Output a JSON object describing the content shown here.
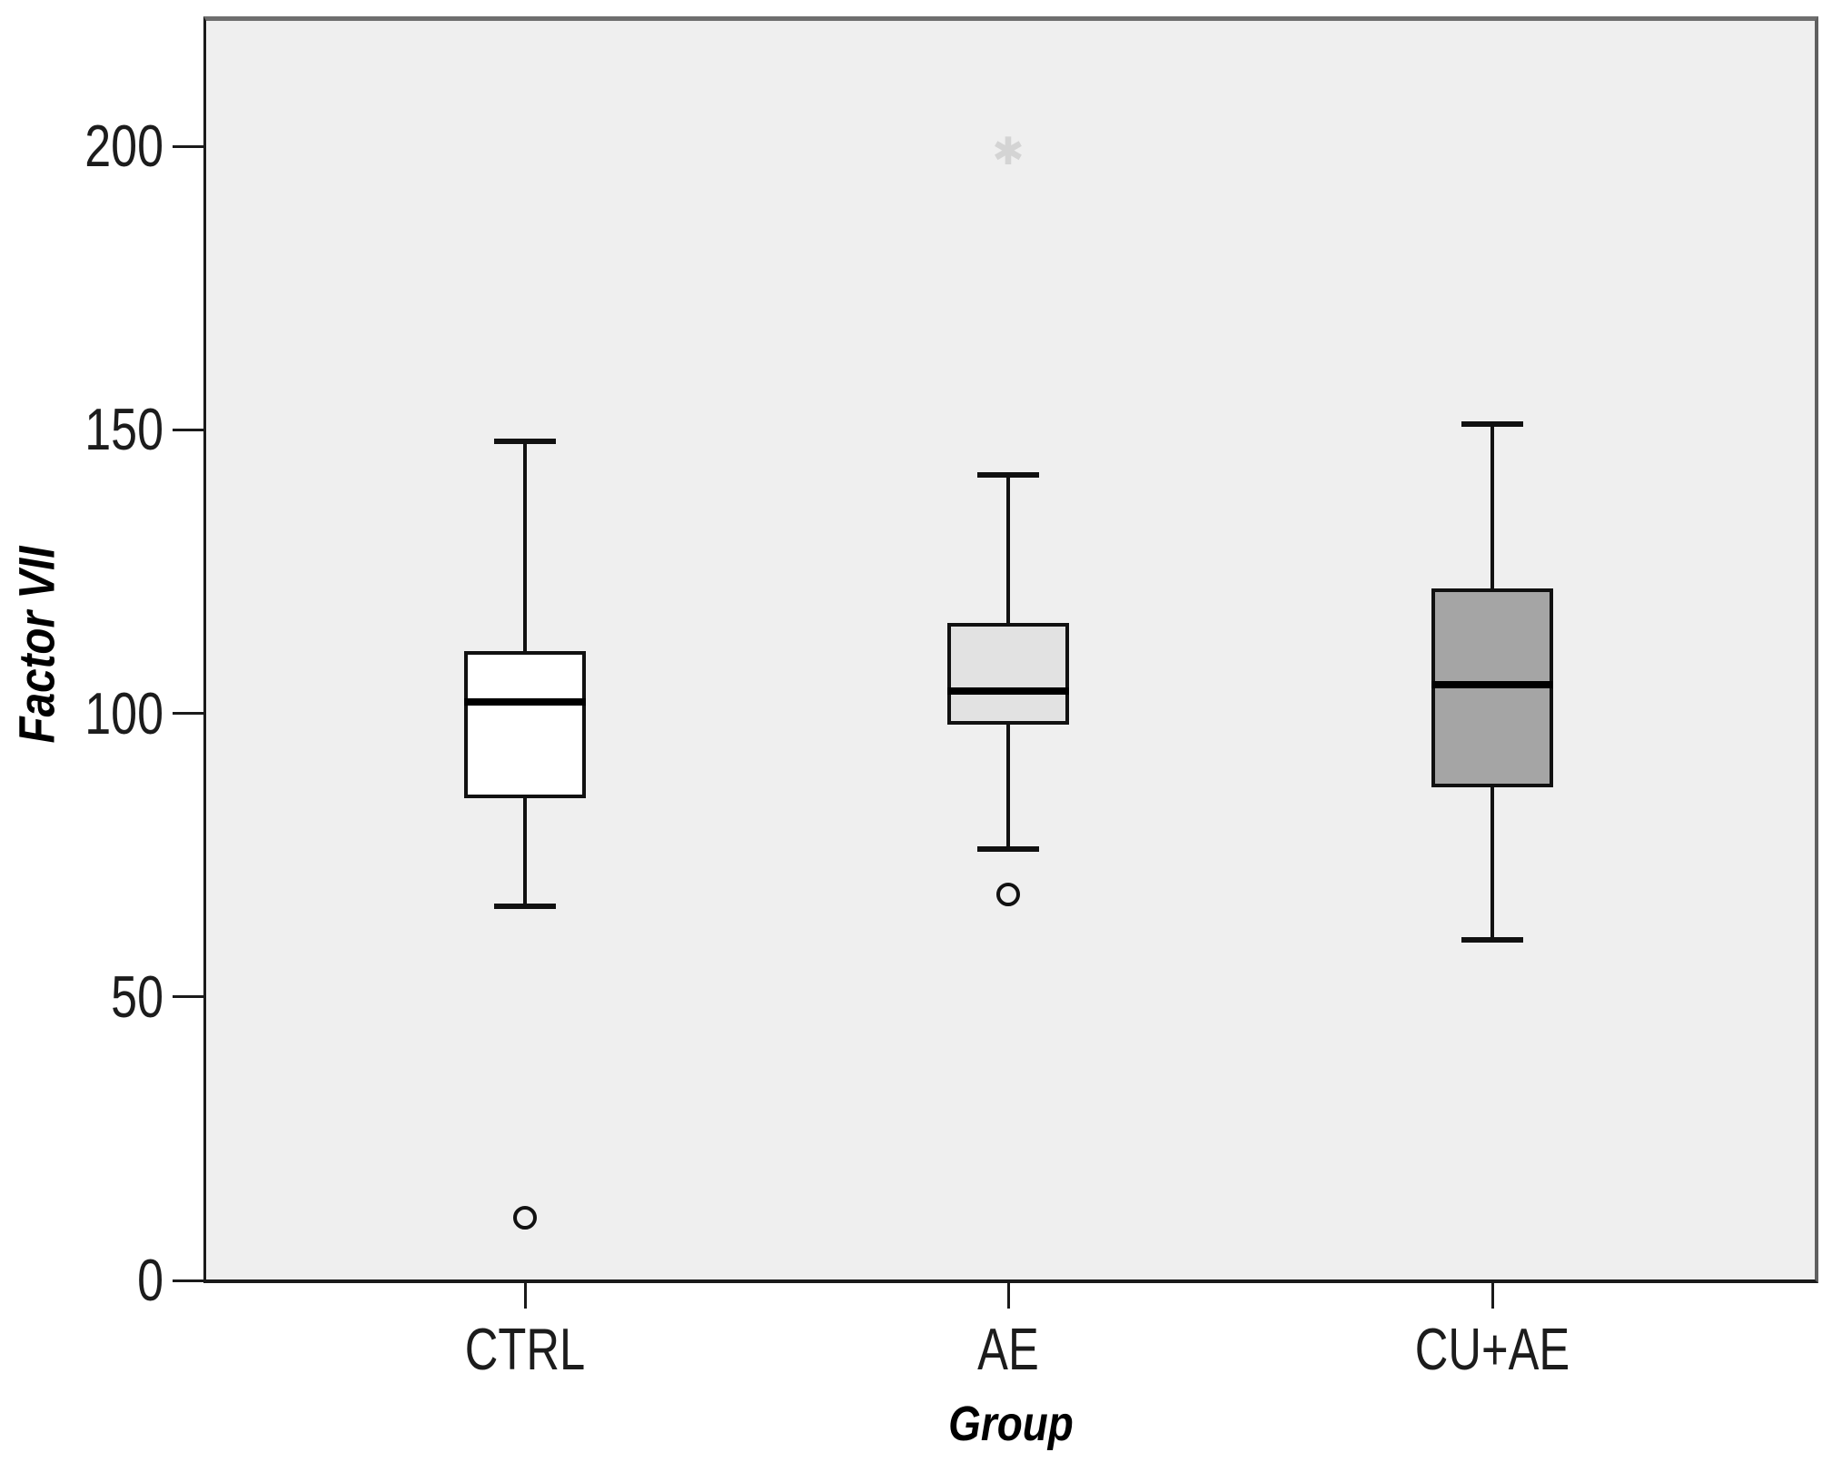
{
  "chart_data": {
    "type": "boxplot",
    "title": "",
    "xlabel": "Group",
    "ylabel": "Factor VII",
    "categories": [
      "CTRL",
      "AE",
      "CU+AE"
    ],
    "ylim": [
      0,
      223
    ],
    "yticks": [
      0,
      50,
      100,
      150,
      200
    ],
    "grid": false,
    "legend": "none",
    "series": [
      {
        "name": "CTRL",
        "whisker_low": 66,
        "q1": 85,
        "median": 102,
        "q3": 111,
        "whisker_high": 148,
        "outliers": [
          11
        ],
        "extremes": [],
        "box_fill": "#ffffff"
      },
      {
        "name": "AE",
        "whisker_low": 76,
        "q1": 98,
        "median": 104,
        "q3": 116,
        "whisker_high": 142,
        "outliers": [
          68
        ],
        "extremes": [
          199
        ],
        "box_fill": "#e2e2e2"
      },
      {
        "name": "CU+AE",
        "whisker_low": 60,
        "q1": 87,
        "median": 105,
        "q3": 122,
        "whisker_high": 151,
        "outliers": [],
        "extremes": [],
        "box_fill": "#a5a5a5"
      }
    ],
    "colors": {
      "plot_background": "#efefef",
      "box_border": "#111111",
      "whisker": "#111111",
      "median": "#000000",
      "outlier_stroke": "#111111",
      "extreme_marker": "#d4d4d4",
      "axis_text": "#1c1c1c"
    }
  }
}
